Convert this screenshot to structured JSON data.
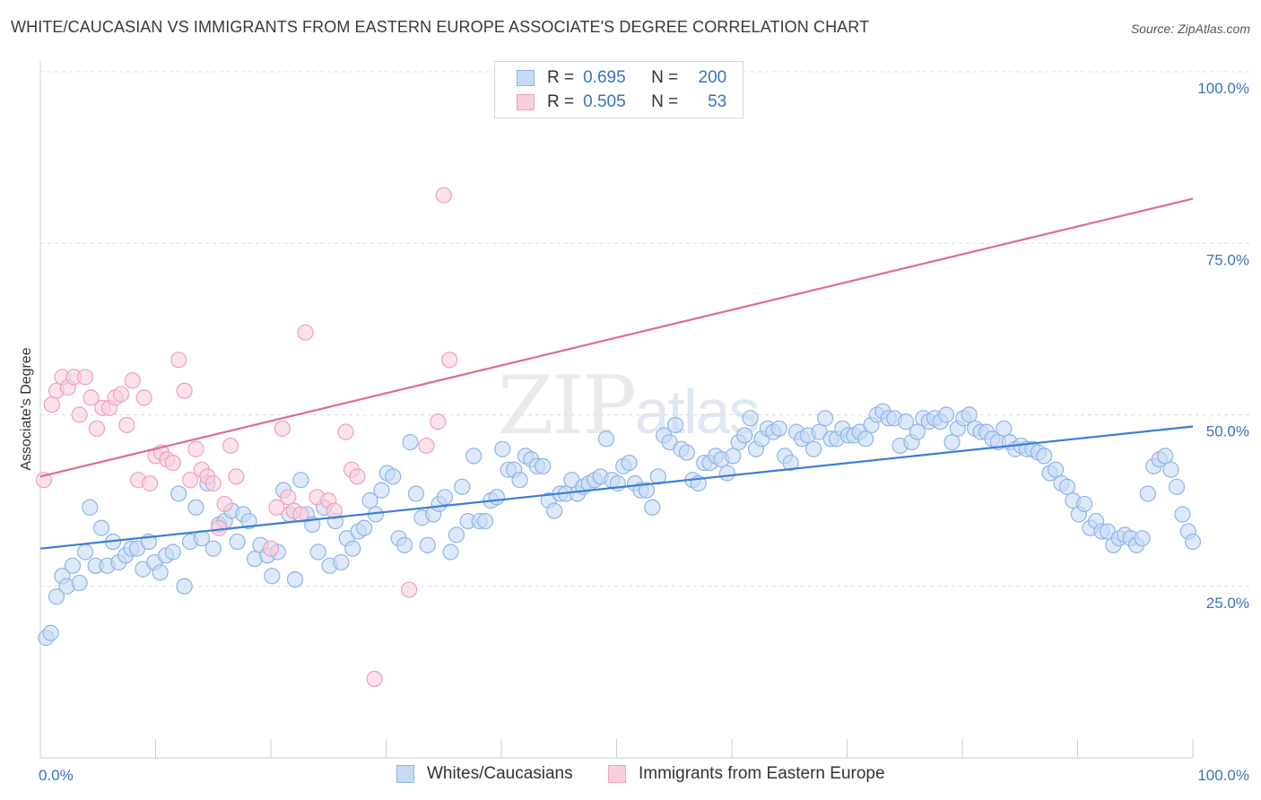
{
  "title": "WHITE/CAUCASIAN VS IMMIGRANTS FROM EASTERN EUROPE ASSOCIATE'S DEGREE CORRELATION CHART",
  "source": "Source: ZipAtlas.com",
  "watermark": {
    "main": "ZIP",
    "sub": "atlas"
  },
  "legend": {
    "rows": [
      {
        "r_label": "R =",
        "r_value": "0.695",
        "n_label": "N =",
        "n_value": "200",
        "color": "#8fb4e8",
        "fill": "#c6daf5"
      },
      {
        "r_label": "R =",
        "r_value": "0.505",
        "n_label": "N =",
        "n_value": "53",
        "color": "#f0a0bb",
        "fill": "#f9cfdc"
      }
    ]
  },
  "bottom_legend": [
    {
      "label": "Whites/Caucasians",
      "color": "#8fb4e8",
      "fill": "#c6daf5"
    },
    {
      "label": "Immigrants from Eastern Europe",
      "color": "#f0a0bb",
      "fill": "#f9cfdc"
    }
  ],
  "chart_data": {
    "type": "scatter",
    "ylabel": "Associate's Degree",
    "x_tick_labels": [
      "0.0%",
      "100.0%"
    ],
    "y_tick_labels": [
      "25.0%",
      "50.0%",
      "75.0%",
      "100.0%"
    ],
    "y_ticks": [
      25,
      50,
      75,
      100
    ],
    "xlim": [
      0,
      100
    ],
    "ylim": [
      0,
      100
    ],
    "grid": "horizontal dashed",
    "series": [
      {
        "name": "Whites/Caucasians",
        "color": "#3b7dd8",
        "fill": "#c6daf5",
        "stroke": "#8fb4e8",
        "trend": [
          [
            0,
            30.5
          ],
          [
            100,
            48.3
          ]
        ],
        "points": [
          [
            0.5,
            17.5
          ],
          [
            0.9,
            18.2
          ],
          [
            1.4,
            23.5
          ],
          [
            1.9,
            26.5
          ],
          [
            2.3,
            25
          ],
          [
            2.8,
            28
          ],
          [
            3.4,
            25.5
          ],
          [
            3.9,
            30
          ],
          [
            4.3,
            36.5
          ],
          [
            4.8,
            28
          ],
          [
            5.3,
            33.5
          ],
          [
            5.8,
            28
          ],
          [
            6.3,
            31.5
          ],
          [
            6.8,
            28.5
          ],
          [
            7.4,
            29.5
          ],
          [
            7.9,
            30.5
          ],
          [
            8.4,
            30.5
          ],
          [
            8.9,
            27.5
          ],
          [
            9.4,
            31.5
          ],
          [
            9.9,
            28.5
          ],
          [
            10.4,
            27
          ],
          [
            10.9,
            29.5
          ],
          [
            11.5,
            30
          ],
          [
            12,
            38.5
          ],
          [
            12.5,
            25
          ],
          [
            13,
            31.5
          ],
          [
            13.5,
            36.5
          ],
          [
            14,
            32
          ],
          [
            14.5,
            40
          ],
          [
            15,
            30.5
          ],
          [
            15.5,
            34
          ],
          [
            16,
            34.5
          ],
          [
            16.6,
            36
          ],
          [
            17.1,
            31.5
          ],
          [
            17.6,
            35.5
          ],
          [
            18.1,
            34.5
          ],
          [
            18.6,
            29
          ],
          [
            19.1,
            31
          ],
          [
            19.7,
            29.5
          ],
          [
            20.1,
            26.5
          ],
          [
            20.6,
            30
          ],
          [
            21.1,
            39
          ],
          [
            21.6,
            35.5
          ],
          [
            22.1,
            26
          ],
          [
            22.6,
            40.5
          ],
          [
            23.1,
            35.5
          ],
          [
            23.6,
            34
          ],
          [
            24.1,
            30
          ],
          [
            24.6,
            36.5
          ],
          [
            25.1,
            28
          ],
          [
            25.6,
            34.5
          ],
          [
            26.1,
            28.5
          ],
          [
            26.6,
            32
          ],
          [
            27.1,
            30.5
          ],
          [
            27.6,
            33
          ],
          [
            28.1,
            33.5
          ],
          [
            28.6,
            37.5
          ],
          [
            29.1,
            35.5
          ],
          [
            29.6,
            39
          ],
          [
            30.1,
            41.5
          ],
          [
            30.6,
            41
          ],
          [
            31.1,
            32
          ],
          [
            31.6,
            31
          ],
          [
            32.1,
            46
          ],
          [
            32.6,
            38.5
          ],
          [
            33.1,
            35
          ],
          [
            33.6,
            31
          ],
          [
            34.1,
            35.5
          ],
          [
            34.6,
            37
          ],
          [
            35.1,
            38
          ],
          [
            35.6,
            30
          ],
          [
            36.1,
            32.5
          ],
          [
            36.6,
            39.5
          ],
          [
            37.1,
            34.5
          ],
          [
            37.6,
            44
          ],
          [
            38.1,
            34.5
          ],
          [
            38.6,
            34.5
          ],
          [
            39.1,
            37.5
          ],
          [
            39.6,
            38
          ],
          [
            40.1,
            45
          ],
          [
            40.6,
            42
          ],
          [
            41.1,
            42
          ],
          [
            41.6,
            40.5
          ],
          [
            42.1,
            44
          ],
          [
            42.6,
            43.5
          ],
          [
            43.1,
            42.5
          ],
          [
            43.6,
            42.5
          ],
          [
            44.1,
            37.5
          ],
          [
            44.6,
            36
          ],
          [
            45.1,
            38.5
          ],
          [
            45.6,
            38.5
          ],
          [
            46.1,
            40.5
          ],
          [
            46.6,
            38.5
          ],
          [
            47.1,
            39.5
          ],
          [
            47.6,
            40
          ],
          [
            48.1,
            40.5
          ],
          [
            48.6,
            41
          ],
          [
            49.1,
            46.5
          ],
          [
            49.6,
            40.5
          ],
          [
            50.1,
            40
          ],
          [
            50.6,
            42.5
          ],
          [
            51.1,
            43
          ],
          [
            51.6,
            40
          ],
          [
            52.1,
            39
          ],
          [
            52.6,
            39
          ],
          [
            53.1,
            36.5
          ],
          [
            53.6,
            41
          ],
          [
            54.1,
            47
          ],
          [
            54.6,
            46
          ],
          [
            55.1,
            48.5
          ],
          [
            55.6,
            45
          ],
          [
            56.1,
            44.5
          ],
          [
            56.6,
            40.5
          ],
          [
            57.1,
            40
          ],
          [
            57.6,
            43
          ],
          [
            58.1,
            43
          ],
          [
            58.6,
            44
          ],
          [
            59.1,
            43.5
          ],
          [
            59.6,
            41.5
          ],
          [
            60.1,
            44
          ],
          [
            60.6,
            46
          ],
          [
            61.1,
            47
          ],
          [
            61.6,
            49.5
          ],
          [
            62.1,
            45
          ],
          [
            62.6,
            46.5
          ],
          [
            63.1,
            48
          ],
          [
            63.6,
            47.5
          ],
          [
            64.1,
            48
          ],
          [
            64.6,
            44
          ],
          [
            65.1,
            43
          ],
          [
            65.6,
            47.5
          ],
          [
            66.1,
            46.5
          ],
          [
            66.6,
            47
          ],
          [
            67.1,
            45
          ],
          [
            67.6,
            47.5
          ],
          [
            68.1,
            49.5
          ],
          [
            68.6,
            46.5
          ],
          [
            69.1,
            46.5
          ],
          [
            69.6,
            48
          ],
          [
            70.1,
            47
          ],
          [
            70.6,
            47
          ],
          [
            71.1,
            47.5
          ],
          [
            71.6,
            46.5
          ],
          [
            72.1,
            48.5
          ],
          [
            72.6,
            50
          ],
          [
            73.1,
            50.5
          ],
          [
            73.6,
            49.5
          ],
          [
            74.1,
            49.5
          ],
          [
            74.6,
            45.5
          ],
          [
            75.1,
            49
          ],
          [
            75.6,
            46
          ],
          [
            76.1,
            47.5
          ],
          [
            76.6,
            49.5
          ],
          [
            77.1,
            49
          ],
          [
            77.6,
            49.5
          ],
          [
            78.1,
            49
          ],
          [
            78.6,
            50
          ],
          [
            79.1,
            46
          ],
          [
            79.6,
            48
          ],
          [
            80.1,
            49.5
          ],
          [
            80.6,
            50
          ],
          [
            81.1,
            48
          ],
          [
            81.6,
            47.5
          ],
          [
            82.1,
            47.5
          ],
          [
            82.6,
            46.5
          ],
          [
            83.1,
            46
          ],
          [
            83.6,
            48
          ],
          [
            84.1,
            46
          ],
          [
            84.6,
            45
          ],
          [
            85.1,
            45.5
          ],
          [
            85.6,
            45
          ],
          [
            86.1,
            45
          ],
          [
            86.6,
            44.5
          ],
          [
            87.1,
            44
          ],
          [
            87.6,
            41.5
          ],
          [
            88.1,
            42
          ],
          [
            88.6,
            40
          ],
          [
            89.1,
            39.5
          ],
          [
            89.6,
            37.5
          ],
          [
            90.1,
            35.5
          ],
          [
            90.6,
            37
          ],
          [
            91.1,
            33.5
          ],
          [
            91.6,
            34.5
          ],
          [
            92.1,
            33
          ],
          [
            92.6,
            33
          ],
          [
            93.1,
            31
          ],
          [
            93.6,
            32
          ],
          [
            94.1,
            32.5
          ],
          [
            94.6,
            32
          ],
          [
            95.1,
            31
          ],
          [
            95.6,
            32
          ],
          [
            96.1,
            38.5
          ],
          [
            96.6,
            42.5
          ],
          [
            97.1,
            43.5
          ],
          [
            97.6,
            44
          ],
          [
            98.1,
            42
          ],
          [
            98.6,
            39.5
          ],
          [
            99.1,
            35.5
          ],
          [
            99.6,
            33
          ],
          [
            100,
            31.5
          ]
        ]
      },
      {
        "name": "Immigrants from Eastern Europe",
        "color": "#e06a93",
        "fill": "#f9cfdc",
        "stroke": "#f0a0bb",
        "trend": [
          [
            0,
            41
          ],
          [
            100,
            81.5
          ]
        ],
        "points": [
          [
            0.3,
            40.5
          ],
          [
            1,
            51.5
          ],
          [
            1.4,
            53.5
          ],
          [
            1.9,
            55.5
          ],
          [
            2.4,
            54
          ],
          [
            2.9,
            55.5
          ],
          [
            3.4,
            50
          ],
          [
            3.9,
            55.5
          ],
          [
            4.4,
            52.5
          ],
          [
            4.9,
            48
          ],
          [
            5.4,
            51
          ],
          [
            6,
            51
          ],
          [
            6.5,
            52.5
          ],
          [
            7,
            53
          ],
          [
            7.5,
            48.5
          ],
          [
            8,
            55
          ],
          [
            8.5,
            40.5
          ],
          [
            9,
            52.5
          ],
          [
            9.5,
            40
          ],
          [
            10,
            44
          ],
          [
            10.5,
            44.5
          ],
          [
            11,
            43.5
          ],
          [
            11.5,
            43
          ],
          [
            12,
            58
          ],
          [
            12.5,
            53.5
          ],
          [
            13,
            40.5
          ],
          [
            13.5,
            45
          ],
          [
            14,
            42
          ],
          [
            14.5,
            41
          ],
          [
            15,
            40
          ],
          [
            15.5,
            33.5
          ],
          [
            16,
            37
          ],
          [
            16.5,
            45.5
          ],
          [
            17,
            41
          ],
          [
            20,
            30.5
          ],
          [
            20.5,
            36.5
          ],
          [
            21,
            48
          ],
          [
            21.5,
            38
          ],
          [
            22,
            36
          ],
          [
            22.6,
            35.5
          ],
          [
            23,
            62
          ],
          [
            24,
            38
          ],
          [
            25,
            37.5
          ],
          [
            25.5,
            36
          ],
          [
            26.5,
            47.5
          ],
          [
            27,
            42
          ],
          [
            27.5,
            41
          ],
          [
            32,
            24.5
          ],
          [
            33.5,
            45.5
          ],
          [
            34.5,
            49
          ],
          [
            35,
            82
          ],
          [
            35.5,
            58
          ],
          [
            29,
            11.5
          ]
        ]
      }
    ],
    "extra_points_note": ""
  }
}
